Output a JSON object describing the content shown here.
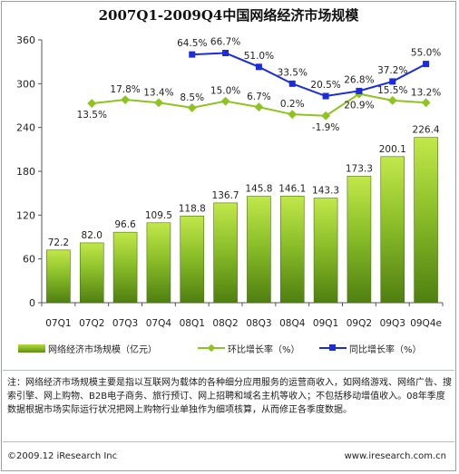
{
  "title": "2007Q1-2009Q4中国网络经济市场规模",
  "chart_data": {
    "type": "bar",
    "categories": [
      "07Q1",
      "07Q2",
      "07Q3",
      "07Q4",
      "08Q1",
      "08Q2",
      "08Q3",
      "08Q4",
      "09Q1",
      "09Q2",
      "09Q3",
      "09Q4e"
    ],
    "ylim": [
      0,
      360
    ],
    "yticks": [
      0,
      60,
      120,
      180,
      240,
      300,
      360
    ],
    "grid": false,
    "legend_position": "bottom",
    "series": [
      {
        "name": "网络经济市场规模（亿元）",
        "type": "bar",
        "values": [
          72.2,
          82.0,
          96.6,
          109.5,
          118.8,
          136.7,
          145.8,
          146.1,
          143.3,
          173.3,
          200.1,
          226.4
        ],
        "labels": [
          "72.2",
          "82.0",
          "96.6",
          "109.5",
          "118.8",
          "136.7",
          "145.8",
          "146.1",
          "143.3",
          "173.3",
          "200.1",
          "226.4"
        ],
        "color": "#6a9a1c"
      },
      {
        "name": "环比增长率（%）",
        "type": "line",
        "values": [
          null,
          13.5,
          17.8,
          13.4,
          8.5,
          15.0,
          6.7,
          0.2,
          -1.9,
          20.9,
          15.5,
          13.2
        ],
        "labels": [
          null,
          "13.5%",
          "17.8%",
          "13.4%",
          "8.5%",
          "15.0%",
          "6.7%",
          "0.2%",
          "-1.9%",
          "20.9%",
          "15.5%",
          "13.2%"
        ],
        "plot_positions": [
          null,
          273,
          278,
          274,
          267,
          276,
          268,
          258,
          256,
          286,
          277,
          274
        ],
        "color": "#8fc31f"
      },
      {
        "name": "同比增长率（%）",
        "type": "line",
        "values": [
          null,
          null,
          null,
          null,
          64.5,
          66.7,
          51.0,
          33.5,
          20.5,
          26.8,
          37.2,
          55.0
        ],
        "labels": [
          null,
          null,
          null,
          null,
          "64.5%",
          "66.7%",
          "51.0%",
          "33.5%",
          "20.5%",
          "26.8%",
          "37.2%",
          "55.0%"
        ],
        "plot_positions": [
          null,
          null,
          null,
          null,
          340,
          342,
          323,
          300,
          283,
          290,
          303,
          327
        ],
        "color": "#1b2be0"
      }
    ]
  },
  "note": "注：网络经济市场规模主要是指以互联网为载体的各种细分应用服务的运营商收入，如网络游戏、网络广告、搜索引擎、网上购物、B2B电子商务、旅行预订、网上招聘和域名主机等收入；不包括移动增值收入。08年季度数据根据市场实际运行状况把网上购物行业单独作为细项核算，从而修正各季度数据。",
  "footer": {
    "copyright": "©2009.12 iResearch Inc",
    "website": "www.iresearch.com.cn"
  }
}
